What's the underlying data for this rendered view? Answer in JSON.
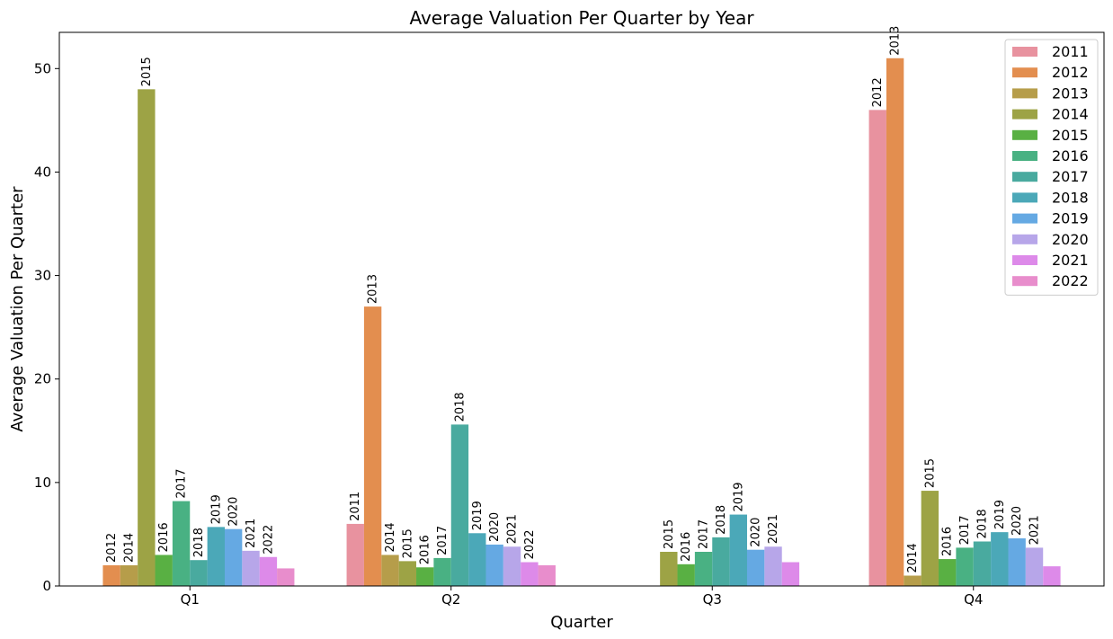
{
  "chart_data": {
    "type": "bar",
    "title": "Average Valuation Per Quarter by Year",
    "xlabel": "Quarter",
    "ylabel": "Average Valuation Per Quarter",
    "categories": [
      "Q1",
      "Q2",
      "Q3",
      "Q4"
    ],
    "ylim": [
      0,
      53.5
    ],
    "yticks": [
      0,
      10,
      20,
      30,
      40,
      50
    ],
    "grid": false,
    "legend_position": "top-right",
    "series": [
      {
        "name": "2011",
        "color": "#e8929f",
        "values": [
          null,
          6.0,
          null,
          46.0
        ]
      },
      {
        "name": "2012",
        "color": "#e38e4f",
        "values": [
          2.0,
          27.0,
          null,
          51.0
        ]
      },
      {
        "name": "2013",
        "color": "#b69d4a",
        "values": [
          2.0,
          3.0,
          null,
          1.0
        ]
      },
      {
        "name": "2014",
        "color": "#9da345",
        "values": [
          48.0,
          2.4,
          3.3,
          9.2
        ]
      },
      {
        "name": "2015",
        "color": "#59b043",
        "values": [
          3.0,
          1.8,
          2.1,
          2.6
        ]
      },
      {
        "name": "2016",
        "color": "#49b183",
        "values": [
          8.2,
          2.7,
          3.3,
          3.7
        ]
      },
      {
        "name": "2017",
        "color": "#49aa9f",
        "values": [
          2.5,
          15.6,
          4.7,
          4.3
        ]
      },
      {
        "name": "2018",
        "color": "#4ba8b8",
        "values": [
          5.7,
          5.1,
          6.9,
          5.2
        ]
      },
      {
        "name": "2019",
        "color": "#65a9e3",
        "values": [
          5.5,
          4.0,
          3.5,
          4.6
        ]
      },
      {
        "name": "2020",
        "color": "#b7a6e9",
        "values": [
          3.4,
          3.8,
          3.8,
          3.7
        ]
      },
      {
        "name": "2021",
        "color": "#dd8ae9",
        "values": [
          2.8,
          2.3,
          2.3,
          1.9
        ]
      },
      {
        "name": "2022",
        "color": "#e88dcc",
        "values": [
          1.7,
          2.0,
          null,
          null
        ]
      }
    ],
    "bar_label_offset": 1,
    "bar_labels": [
      {
        "category": "Q1",
        "series": "2012",
        "text": "2012"
      },
      {
        "category": "Q1",
        "series": "2013",
        "text": "2014"
      },
      {
        "category": "Q1",
        "series": "2014",
        "text": "2015"
      },
      {
        "category": "Q1",
        "series": "2015",
        "text": "2016"
      },
      {
        "category": "Q1",
        "series": "2016",
        "text": "2017"
      },
      {
        "category": "Q1",
        "series": "2017",
        "text": "2018"
      },
      {
        "category": "Q1",
        "series": "2018",
        "text": "2019"
      },
      {
        "category": "Q1",
        "series": "2019",
        "text": "2020"
      },
      {
        "category": "Q1",
        "series": "2020",
        "text": "2021"
      },
      {
        "category": "Q1",
        "series": "2021",
        "text": "2022"
      },
      {
        "category": "Q2",
        "series": "2011",
        "text": "2011"
      },
      {
        "category": "Q2",
        "series": "2012",
        "text": "2013"
      },
      {
        "category": "Q2",
        "series": "2013",
        "text": "2014"
      },
      {
        "category": "Q2",
        "series": "2014",
        "text": "2015"
      },
      {
        "category": "Q2",
        "series": "2015",
        "text": "2016"
      },
      {
        "category": "Q2",
        "series": "2016",
        "text": "2017"
      },
      {
        "category": "Q2",
        "series": "2017",
        "text": "2018"
      },
      {
        "category": "Q2",
        "series": "2018",
        "text": "2019"
      },
      {
        "category": "Q2",
        "series": "2019",
        "text": "2020"
      },
      {
        "category": "Q2",
        "series": "2020",
        "text": "2021"
      },
      {
        "category": "Q2",
        "series": "2021",
        "text": "2022"
      },
      {
        "category": "Q3",
        "series": "2014",
        "text": "2015"
      },
      {
        "category": "Q3",
        "series": "2015",
        "text": "2016"
      },
      {
        "category": "Q3",
        "series": "2016",
        "text": "2017"
      },
      {
        "category": "Q3",
        "series": "2017",
        "text": "2018"
      },
      {
        "category": "Q3",
        "series": "2018",
        "text": "2019"
      },
      {
        "category": "Q3",
        "series": "2019",
        "text": "2020"
      },
      {
        "category": "Q3",
        "series": "2020",
        "text": "2021"
      },
      {
        "category": "Q4",
        "series": "2011",
        "text": "2012"
      },
      {
        "category": "Q4",
        "series": "2012",
        "text": "2013"
      },
      {
        "category": "Q4",
        "series": "2013",
        "text": "2014"
      },
      {
        "category": "Q4",
        "series": "2014",
        "text": "2015"
      },
      {
        "category": "Q4",
        "series": "2015",
        "text": "2016"
      },
      {
        "category": "Q4",
        "series": "2016",
        "text": "2017"
      },
      {
        "category": "Q4",
        "series": "2017",
        "text": "2018"
      },
      {
        "category": "Q4",
        "series": "2018",
        "text": "2019"
      },
      {
        "category": "Q4",
        "series": "2019",
        "text": "2020"
      },
      {
        "category": "Q4",
        "series": "2020",
        "text": "2021"
      }
    ]
  }
}
